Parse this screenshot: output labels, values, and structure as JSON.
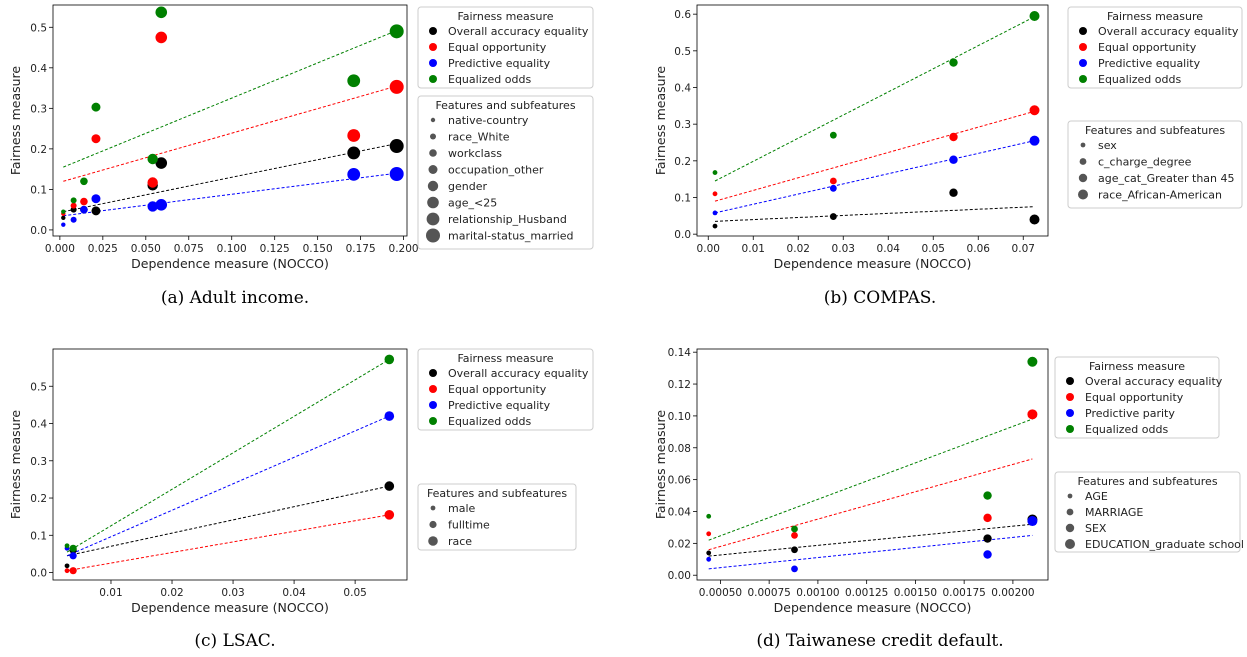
{
  "chart_data": [
    {
      "type": "scatter",
      "caption": "(a) Adult income.",
      "xlabel": "Dependence measure (NOCCO)",
      "ylabel": "Fairness measure",
      "xlim": [
        -0.004,
        0.202
      ],
      "ylim": [
        -0.015,
        0.555
      ],
      "xticks": [
        0.0,
        0.025,
        0.05,
        0.075,
        0.1,
        0.125,
        0.15,
        0.175,
        0.2
      ],
      "xtick_labels": [
        "0.000",
        "0.025",
        "0.050",
        "0.075",
        "0.100",
        "0.125",
        "0.150",
        "0.175",
        "0.200"
      ],
      "yticks": [
        0.0,
        0.1,
        0.2,
        0.3,
        0.4,
        0.5
      ],
      "ytick_labels": [
        "0.0",
        "0.1",
        "0.2",
        "0.3",
        "0.4",
        "0.5"
      ],
      "x": [
        0.002,
        0.008,
        0.014,
        0.021,
        0.054,
        0.059,
        0.171,
        0.196
      ],
      "series": [
        {
          "name": "Overall accuracy equality",
          "color": "#000000",
          "values": [
            0.03,
            0.05,
            0.05,
            0.047,
            0.11,
            0.165,
            0.19,
            0.207
          ],
          "trend": [
            0.045,
            0.213
          ]
        },
        {
          "name": "Equal opportunity",
          "color": "#ff0000",
          "values": [
            0.04,
            0.06,
            0.07,
            0.225,
            0.117,
            0.475,
            0.233,
            0.353
          ],
          "trend": [
            0.12,
            0.355
          ]
        },
        {
          "name": "Predictive equality",
          "color": "#0000ff",
          "values": [
            0.013,
            0.025,
            0.05,
            0.077,
            0.058,
            0.062,
            0.137,
            0.138
          ],
          "trend": [
            0.035,
            0.14
          ]
        },
        {
          "name": "Equalized odds",
          "color": "#008000",
          "values": [
            0.045,
            0.073,
            0.12,
            0.303,
            0.175,
            0.537,
            0.368,
            0.49
          ],
          "trend": [
            0.155,
            0.492
          ]
        }
      ],
      "legend_color_title": "Fairness measure",
      "legend_size_title": "Features and subfeatures",
      "size_labels": [
        "native-country",
        "race_White",
        "workclass",
        "occupation_other",
        "gender",
        "age_<25",
        "relationship_Husband",
        "marital-status_married"
      ]
    },
    {
      "type": "scatter",
      "caption": "(b) COMPAS.",
      "xlabel": "Dependence measure (NOCCO)",
      "ylabel": "Fairness measure",
      "xlim": [
        -0.0025,
        0.0755
      ],
      "ylim": [
        -0.005,
        0.625
      ],
      "xticks": [
        0.0,
        0.01,
        0.02,
        0.03,
        0.04,
        0.05,
        0.06,
        0.07
      ],
      "xtick_labels": [
        "0.00",
        "0.01",
        "0.02",
        "0.03",
        "0.04",
        "0.05",
        "0.06",
        "0.07"
      ],
      "yticks": [
        0.0,
        0.1,
        0.2,
        0.3,
        0.4,
        0.5,
        0.6
      ],
      "ytick_labels": [
        "0.0",
        "0.1",
        "0.2",
        "0.3",
        "0.4",
        "0.5",
        "0.6"
      ],
      "x": [
        0.0015,
        0.0278,
        0.0545,
        0.0725
      ],
      "series": [
        {
          "name": "Overall accuracy equality",
          "color": "#000000",
          "values": [
            0.022,
            0.048,
            0.113,
            0.04
          ],
          "trend": [
            0.035,
            0.075
          ]
        },
        {
          "name": "Equal opportunity",
          "color": "#ff0000",
          "values": [
            0.11,
            0.145,
            0.265,
            0.338
          ],
          "trend": [
            0.09,
            0.335
          ]
        },
        {
          "name": "Predictive equality",
          "color": "#0000ff",
          "values": [
            0.058,
            0.125,
            0.203,
            0.255
          ],
          "trend": [
            0.058,
            0.255
          ]
        },
        {
          "name": "Equalized odds",
          "color": "#008000",
          "values": [
            0.168,
            0.27,
            0.468,
            0.595
          ],
          "trend": [
            0.145,
            0.593
          ]
        }
      ],
      "legend_color_title": "Fairness measure",
      "legend_size_title": "Features and subfeatures",
      "size_labels": [
        "sex",
        "c_charge_degree",
        "age_cat_Greater than 45",
        "race_African-American"
      ]
    },
    {
      "type": "scatter",
      "caption": "(c) LSAC.",
      "xlabel": "Dependence measure (NOCCO)",
      "ylabel": "Fairness measure",
      "xlim": [
        0.0005,
        0.0585
      ],
      "ylim": [
        -0.02,
        0.6
      ],
      "xticks": [
        0.01,
        0.02,
        0.03,
        0.04,
        0.05
      ],
      "xtick_labels": [
        "0.01",
        "0.02",
        "0.03",
        "0.04",
        "0.05"
      ],
      "yticks": [
        0.0,
        0.1,
        0.2,
        0.3,
        0.4,
        0.5
      ],
      "ytick_labels": [
        "0.0",
        "0.1",
        "0.2",
        "0.3",
        "0.4",
        "0.5"
      ],
      "x": [
        0.0028,
        0.0038,
        0.0556
      ],
      "series": [
        {
          "name": "Overall accuracy equality",
          "color": "#000000",
          "values": [
            0.018,
            0.06,
            0.232
          ],
          "trend": [
            0.045,
            0.232
          ]
        },
        {
          "name": "Equal opportunity",
          "color": "#ff0000",
          "values": [
            0.005,
            0.005,
            0.155
          ],
          "trend": [
            0.005,
            0.155
          ]
        },
        {
          "name": "Predictive equality",
          "color": "#0000ff",
          "values": [
            0.065,
            0.045,
            0.42
          ],
          "trend": [
            0.045,
            0.42
          ]
        },
        {
          "name": "Equalized odds",
          "color": "#008000",
          "values": [
            0.072,
            0.065,
            0.572
          ],
          "trend": [
            0.055,
            0.572
          ]
        }
      ],
      "legend_color_title": "Fairness measure",
      "legend_size_title": "Features and subfeatures",
      "size_labels": [
        "male",
        "fulltime",
        "race"
      ]
    },
    {
      "type": "scatter",
      "caption": "(d) Taiwanese credit default.",
      "xlabel": "Dependence measure (NOCCO)",
      "ylabel": "Fairness measure",
      "xlim": [
        0.00038,
        0.00218
      ],
      "ylim": [
        -0.003,
        0.142
      ],
      "xticks": [
        0.0005,
        0.00075,
        0.001,
        0.00125,
        0.0015,
        0.00175,
        0.002
      ],
      "xtick_labels": [
        "0.00050",
        "0.00075",
        "0.00100",
        "0.00125",
        "0.00150",
        "0.00175",
        "0.00200"
      ],
      "yticks": [
        0.0,
        0.02,
        0.04,
        0.06,
        0.08,
        0.1,
        0.12,
        0.14
      ],
      "ytick_labels": [
        "0.00",
        "0.02",
        "0.04",
        "0.06",
        "0.08",
        "0.10",
        "0.12",
        "0.14"
      ],
      "x": [
        0.00044,
        0.00088,
        0.00187,
        0.0021
      ],
      "series": [
        {
          "name": "Overal accuracy equality",
          "color": "#000000",
          "values": [
            0.014,
            0.016,
            0.023,
            0.035
          ],
          "trend": [
            0.012,
            0.032
          ]
        },
        {
          "name": "Equal opportunity",
          "color": "#ff0000",
          "values": [
            0.026,
            0.025,
            0.036,
            0.101
          ],
          "trend": [
            0.016,
            0.073
          ]
        },
        {
          "name": "Predictive parity",
          "color": "#0000ff",
          "values": [
            0.01,
            0.004,
            0.013,
            0.034
          ],
          "trend": [
            0.004,
            0.025
          ]
        },
        {
          "name": "Equalized odds",
          "color": "#008000",
          "values": [
            0.037,
            0.029,
            0.05,
            0.134
          ],
          "trend": [
            0.022,
            0.098
          ]
        }
      ],
      "legend_color_title": "Fairness measure",
      "legend_size_title": "Features and subfeatures",
      "size_labels": [
        "AGE",
        "MARRIAGE",
        "SEX",
        "EDUCATION_graduate school"
      ]
    }
  ]
}
